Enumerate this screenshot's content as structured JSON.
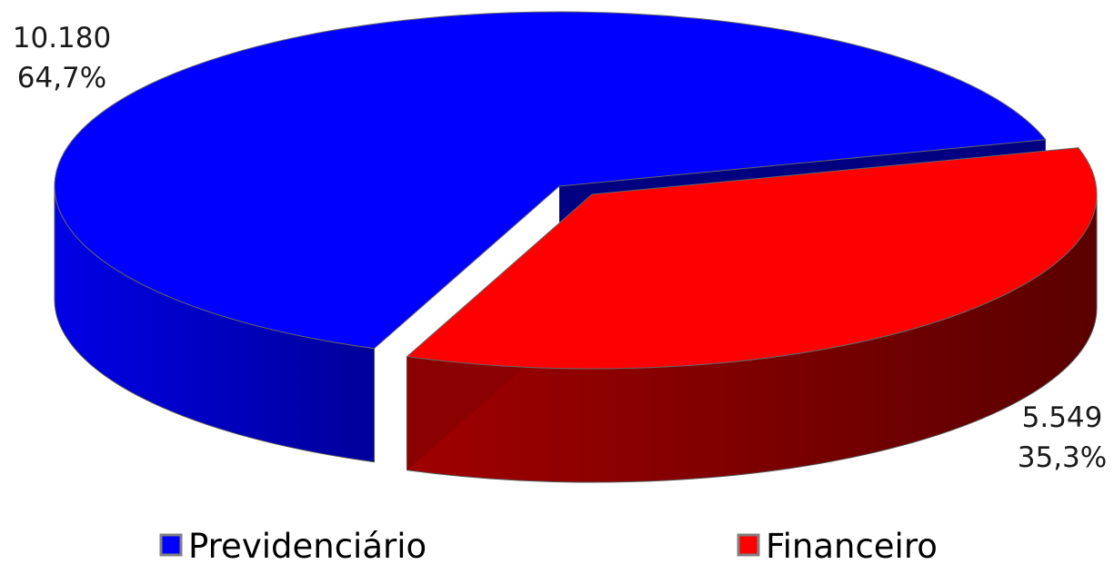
{
  "chart_data": {
    "type": "pie",
    "style": "3d-exploded",
    "categories": [
      "Previdenciário",
      "Financeiro"
    ],
    "values": [
      10180,
      5549
    ],
    "value_labels": [
      "10.180",
      "5.549"
    ],
    "percent_labels": [
      "64,7%",
      "35,3%"
    ],
    "colors": [
      "#0000ff",
      "#ff0000"
    ],
    "side_colors": [
      "#0000b8",
      "#8b0000"
    ],
    "legend": {
      "position": "bottom",
      "entries": [
        "Previdenciário",
        "Financeiro"
      ]
    }
  }
}
